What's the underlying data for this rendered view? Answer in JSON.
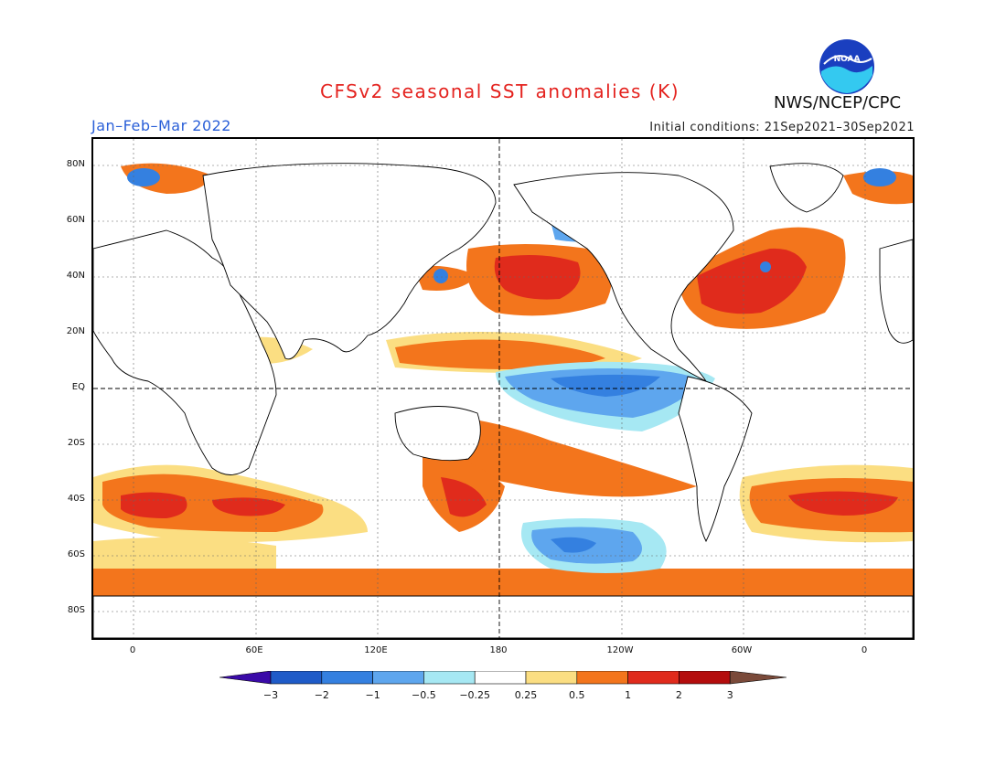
{
  "title": "CFSv2 seasonal SST anomalies (K)",
  "period": "Jan–Feb–Mar 2022",
  "initial_conditions": "Initial conditions: 21Sep2021–30Sep2021",
  "agency": "NWS/NCEP/CPC",
  "logo_text": "NOAA",
  "lat_labels": [
    "80N",
    "60N",
    "40N",
    "20N",
    "EQ",
    "20S",
    "40S",
    "60S",
    "80S"
  ],
  "lon_labels": [
    "0",
    "60E",
    "120E",
    "180",
    "120W",
    "60W",
    "0"
  ],
  "colorbar": {
    "tick_labels": [
      "−3",
      "−2",
      "−1",
      "−0.5",
      "−0.25",
      "0.25",
      "0.5",
      "1",
      "2",
      "3"
    ],
    "colors": [
      "#3a0aa8",
      "#1f5bc8",
      "#3480e0",
      "#5ea6ee",
      "#a6e8f3",
      "#ffffff",
      "#fbde82",
      "#f3751c",
      "#e02b1c",
      "#b40d0d",
      "#7a4a3a"
    ]
  }
}
